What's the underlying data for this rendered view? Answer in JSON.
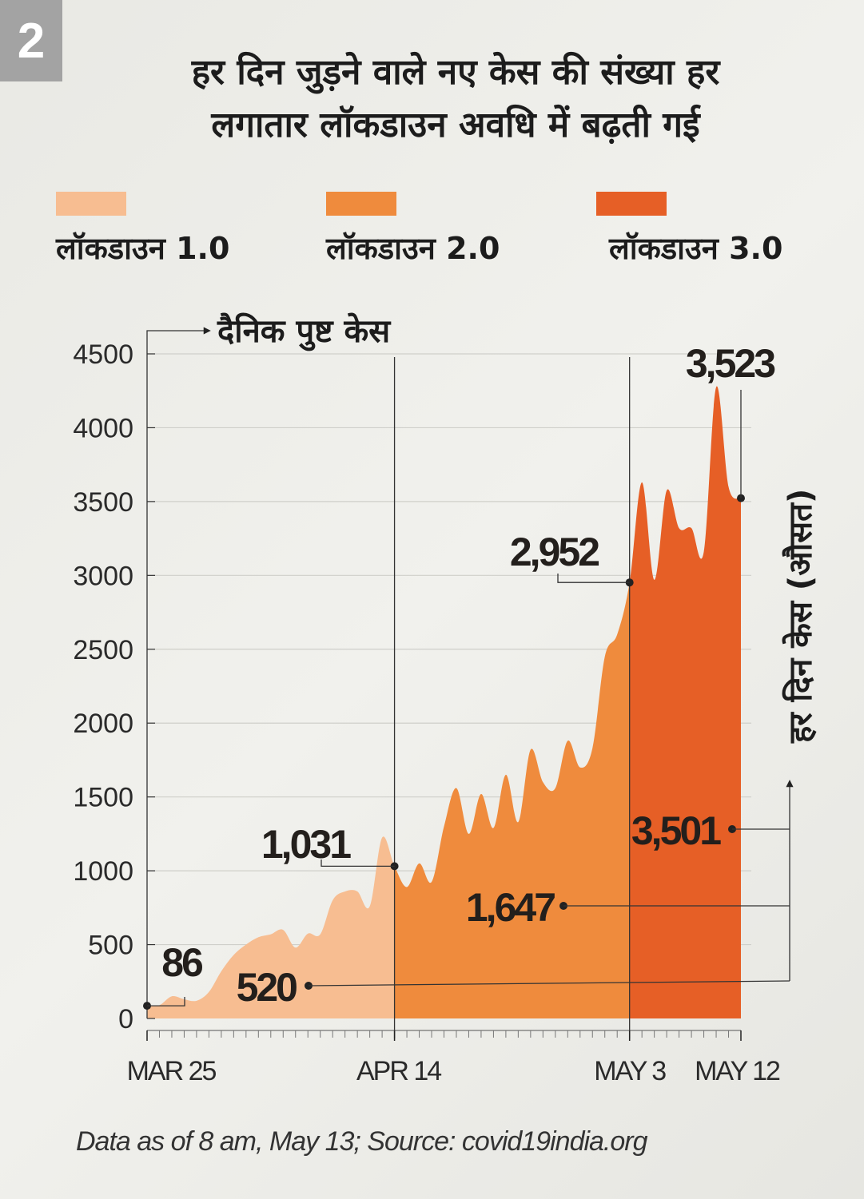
{
  "badge": "2",
  "title_line1": "हर दिन जुड़ने वाले नए केस की संख्या हर",
  "title_line2": "लगातार लॉकडाउन अवधि में बढ़ती गई",
  "legend": [
    {
      "label": "लॉकडाउन 1.0",
      "color": "#f7bd91"
    },
    {
      "label": "लॉकडाउन 2.0",
      "color": "#ef8b3d"
    },
    {
      "label": "लॉकडाउन 3.0",
      "color": "#e65f26"
    }
  ],
  "source": "Data as of 8 am, May 13; Source: covid19india.org",
  "chart_data": {
    "type": "area",
    "ylabel": "दैनिक पुष्ट केस",
    "right_label": "हर दिन केस (औसत)",
    "ylim": [
      0,
      4500
    ],
    "yticks": [
      "0",
      "500",
      "1000",
      "1500",
      "2000",
      "2500",
      "3000",
      "3500",
      "4000",
      "4500"
    ],
    "grid": true,
    "xtick_labels": [
      {
        "label": "MAR 25",
        "day": 0
      },
      {
        "label": "APR 14",
        "day": 20
      },
      {
        "label": "MAY 3",
        "day": 39
      },
      {
        "label": "MAY 12",
        "day": 48
      }
    ],
    "x": [
      "Mar 25",
      "Mar 26",
      "Mar 27",
      "Mar 28",
      "Mar 29",
      "Mar 30",
      "Mar 31",
      "Apr 1",
      "Apr 2",
      "Apr 3",
      "Apr 4",
      "Apr 5",
      "Apr 6",
      "Apr 7",
      "Apr 8",
      "Apr 9",
      "Apr 10",
      "Apr 11",
      "Apr 12",
      "Apr 13",
      "Apr 14",
      "Apr 15",
      "Apr 16",
      "Apr 17",
      "Apr 18",
      "Apr 19",
      "Apr 20",
      "Apr 21",
      "Apr 22",
      "Apr 23",
      "Apr 24",
      "Apr 25",
      "Apr 26",
      "Apr 27",
      "Apr 28",
      "Apr 29",
      "Apr 30",
      "May 1",
      "May 2",
      "May 3",
      "May 4",
      "May 5",
      "May 6",
      "May 7",
      "May 8",
      "May 9",
      "May 10",
      "May 11",
      "May 12"
    ],
    "values": [
      86,
      90,
      150,
      130,
      120,
      180,
      320,
      430,
      500,
      550,
      570,
      600,
      480,
      575,
      570,
      800,
      860,
      860,
      760,
      1225,
      1031,
      890,
      1050,
      925,
      1300,
      1560,
      1250,
      1520,
      1290,
      1650,
      1330,
      1820,
      1600,
      1560,
      1880,
      1700,
      1830,
      2450,
      2600,
      2952,
      3630,
      2970,
      3575,
      3320,
      3320,
      3160,
      4275,
      3600,
      3523
    ],
    "phases": [
      {
        "name": "लॉकडाउन 1.0",
        "start": 0,
        "end": 20
      },
      {
        "name": "लॉकडाउन 2.0",
        "start": 20,
        "end": 39
      },
      {
        "name": "लॉकडाउन 3.0",
        "start": 39,
        "end": 48
      }
    ],
    "point_labels": [
      {
        "day": 0,
        "text": "86"
      },
      {
        "day": 20,
        "text": "1,031"
      },
      {
        "day": 39,
        "text": "2,952"
      },
      {
        "day": 48,
        "text": "3,523"
      }
    ],
    "averages": [
      {
        "phase": "लॉकडाउन 1.0",
        "text": "520"
      },
      {
        "phase": "लॉकडाउन 2.0",
        "text": "1,647"
      },
      {
        "phase": "लॉकडाउन 3.0",
        "text": "3,501"
      }
    ]
  }
}
